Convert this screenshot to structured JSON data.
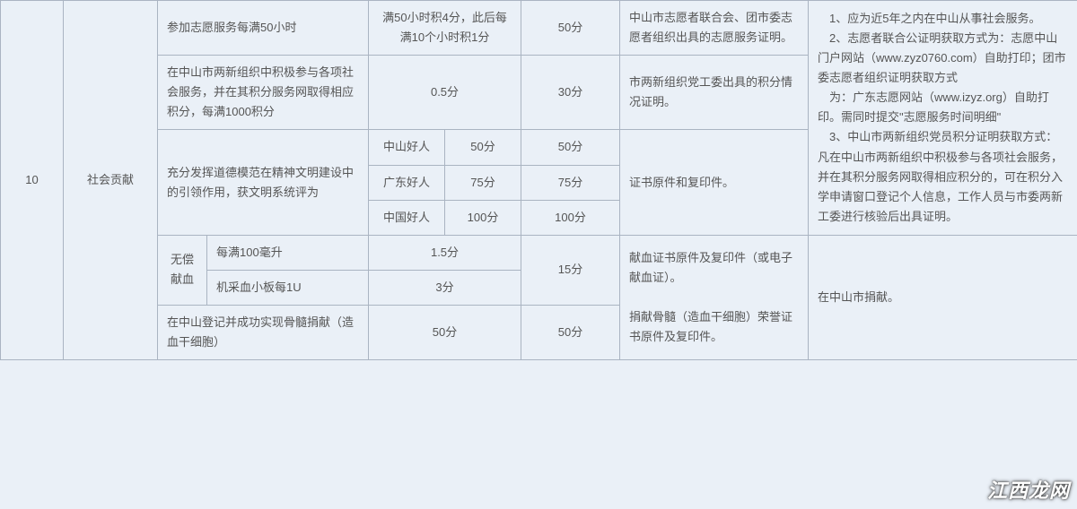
{
  "index": "10",
  "category": "社会贡献",
  "rows": {
    "r1": {
      "desc": "参加志愿服务每满50小时",
      "rule": "满50小时积4分，此后每满10个小时积1分",
      "max": "50分",
      "proof": "中山市志愿者联合会、团市委志愿者组织出具的志愿服务证明。"
    },
    "r2": {
      "desc": "在中山市两新组织中积极参与各项社会服务，并在其积分服务网取得相应积分，每满1000积分",
      "rule": "0.5分",
      "max": "30分",
      "proof": "市两新组织党工委出具的积分情况证明。"
    },
    "r3": {
      "desc": "充分发挥道德模范在精神文明建设中的引领作用，获文明系统评为",
      "a_label": "中山好人",
      "a_score": "50分",
      "a_max": "50分",
      "b_label": "广东好人",
      "b_score": "75分",
      "b_max": "75分",
      "c_label": "中国好人",
      "c_score": "100分",
      "c_max": "100分",
      "proof": "证书原件和复印件。"
    },
    "r4": {
      "group": "无偿献血",
      "a_desc": "每满100毫升",
      "a_rule": "1.5分",
      "b_desc": "机采血小板每1U",
      "b_rule": "3分",
      "max": "15分",
      "proof": "献血证书原件及复印件（或电子献血证）。",
      "note": "在中山市捐献。"
    },
    "r5": {
      "desc": "在中山登记并成功实现骨髓捐献（造血干细胞）",
      "rule": "50分",
      "max": "50分",
      "proof": "捐献骨髓（造血干细胞）荣誉证书原件及复印件。"
    },
    "notes_block": "　1、应为近5年之内在中山从事社会服务。\n　2、志愿者联合公证明获取方式为：志愿中山门户网站（www.zyz0760.com）自助打印；团市委志愿者组织证明获取方式\n　为：广东志愿网站（www.izyz.org）自助打印。需同时提交\"志愿服务时间明细\"\n　3、中山市两新组织党员积分证明获取方式：凡在中山市两新组织中积极参与各项社会服务，并在其积分服务网取得相应积分的，可在积分入学申请窗口登记个人信息，工作人员与市委两新工委进行核验后出具证明。"
  },
  "watermark": "江西龙网"
}
